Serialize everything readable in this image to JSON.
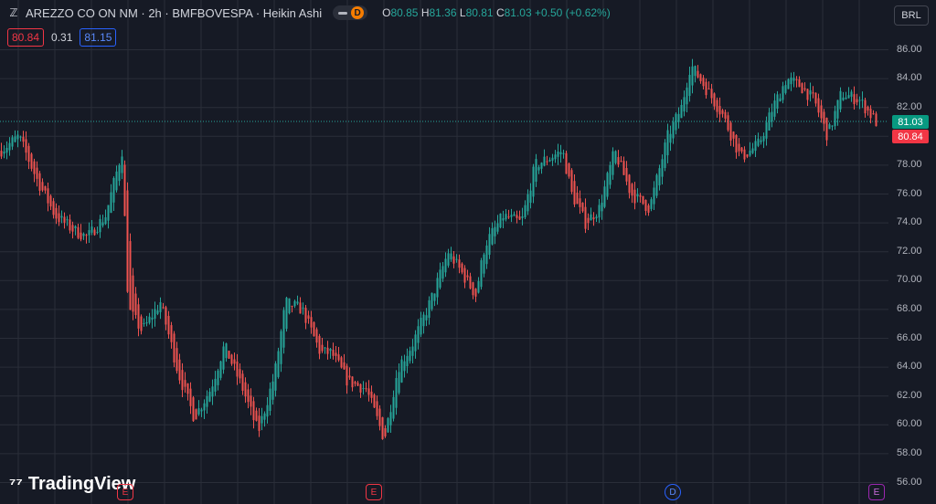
{
  "header": {
    "symbol_icon": "zz-icon",
    "title": "AREZZO CO ON NM · 2h · BMFBOVESPA · Heikin Ashi",
    "badge_letter": "D",
    "ohlc": {
      "o_label": "O",
      "o": "80.85",
      "h_label": "H",
      "h": "81.36",
      "l_label": "L",
      "l": "80.81",
      "c_label": "C",
      "c": "81.03",
      "change": "+0.50 (+0.62%)"
    }
  },
  "quote": {
    "bid": "80.84",
    "spread": "0.31",
    "ask": "81.15"
  },
  "currency": "BRL",
  "price_labels": {
    "last": "81.03",
    "bid": "80.84"
  },
  "colors": {
    "up": "#26a69a",
    "down": "#ef5350",
    "background": "#161a25",
    "grid": "#2a2e39"
  },
  "logo_text": "TradingView",
  "events": [
    {
      "letter": "E",
      "type": "earnings"
    },
    {
      "letter": "E",
      "type": "earnings"
    },
    {
      "letter": "D",
      "type": "dividend"
    },
    {
      "letter": "E",
      "type": "earnings"
    }
  ],
  "chart_data": {
    "type": "candlestick",
    "style": "Heikin Ashi",
    "y_ticks": [
      "86.00",
      "84.00",
      "82.00",
      "80.00",
      "78.00",
      "76.00",
      "74.00",
      "72.00",
      "70.00",
      "68.00",
      "66.00",
      "64.00",
      "62.00",
      "60.00",
      "58.00",
      "56.00"
    ],
    "ylim": [
      56,
      86.5
    ],
    "grid": true,
    "path_x": [
      0,
      20,
      40,
      60,
      80,
      95,
      115,
      133,
      140,
      155,
      175,
      195,
      212,
      230,
      245,
      265,
      282,
      300,
      312,
      330,
      350,
      362,
      380,
      400,
      420,
      435,
      450,
      470,
      490,
      505,
      520,
      530,
      550,
      570,
      585,
      600,
      615,
      625,
      640,
      655,
      672,
      690,
      710,
      730,
      745,
      755,
      770,
      790,
      810,
      830,
      845,
      860,
      875,
      890,
      905,
      920,
      940,
      958
    ],
    "path_y": [
      79.0,
      80.0,
      77.0,
      74.5,
      73.5,
      73.0,
      74.5,
      79.0,
      68.0,
      66.5,
      68.5,
      63.5,
      60.5,
      62.5,
      65.5,
      62.5,
      59.5,
      63.5,
      68.5,
      68.0,
      65.0,
      65.0,
      63.0,
      62.5,
      59.0,
      64.0,
      65.5,
      68.5,
      72.0,
      70.5,
      69.0,
      72.5,
      74.5,
      74.0,
      78.0,
      78.5,
      79.0,
      76.0,
      74.0,
      75.0,
      79.0,
      76.0,
      75.0,
      80.0,
      82.0,
      85.0,
      83.5,
      81.5,
      78.5,
      79.5,
      82.0,
      84.0,
      83.5,
      82.5,
      80.0,
      83.0,
      82.5,
      81.0
    ]
  }
}
